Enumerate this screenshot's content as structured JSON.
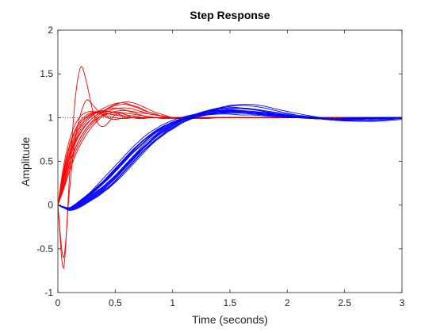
{
  "chart_data": {
    "type": "line",
    "title": "Step Response",
    "xlabel": "Time (seconds)",
    "ylabel": "Amplitude",
    "xlim": [
      0,
      3
    ],
    "ylim": [
      -1,
      2
    ],
    "xticks": [
      0,
      0.5,
      1,
      1.5,
      2,
      2.5,
      3
    ],
    "xtick_labels": [
      "0",
      "0.5",
      "1",
      "1.5",
      "2",
      "2.5",
      "3"
    ],
    "yticks": [
      -1,
      -0.5,
      0,
      0.5,
      1,
      1.5,
      2
    ],
    "ytick_labels": [
      "-1",
      "-0.5",
      "0",
      "0.5",
      "1",
      "1.5",
      "2"
    ],
    "grid": false,
    "reference_line": {
      "y": 1,
      "style": "dotted",
      "color": "#000000"
    },
    "colors": {
      "fast": "#ff0000",
      "slow": "#0000ff"
    },
    "x": [
      0,
      0.05,
      0.1,
      0.15,
      0.2,
      0.25,
      0.3,
      0.35,
      0.4,
      0.45,
      0.5,
      0.55,
      0.6,
      0.65,
      0.7,
      0.75,
      0.8,
      0.85,
      0.9,
      0.95,
      1,
      1.1,
      1.2,
      1.3,
      1.4,
      1.5,
      1.6,
      1.7,
      1.8,
      1.9,
      2,
      2.2,
      2.4,
      2.6,
      2.8,
      3
    ],
    "series": [
      {
        "group": "fast",
        "values": [
          0,
          -0.72,
          0.3,
          1.2,
          1.58,
          1.4,
          1.1,
          0.93,
          0.9,
          0.96,
          1.03,
          1.05,
          1.03,
          1.0,
          0.99,
          0.99,
          1.0,
          1.0,
          1.0,
          1.0,
          1.0,
          1.0,
          1.0,
          1.0,
          1.0,
          1.0,
          1.0,
          1.0,
          1.0,
          1.0,
          1.0,
          1.0,
          1.0,
          1.0,
          1.0,
          1.0
        ]
      },
      {
        "group": "fast",
        "values": [
          0,
          -0.6,
          0.15,
          0.75,
          1.05,
          1.2,
          1.15,
          1.08,
          1.02,
          0.99,
          0.98,
          0.99,
          1.0,
          1.0,
          1.0,
          1.0,
          1.0,
          1.0,
          1.0,
          1.0,
          1.0,
          1.0,
          1.0,
          1.0,
          1.0,
          1.0,
          1.0,
          1.0,
          1.0,
          1.0,
          1.0,
          1.0,
          1.0,
          1.0,
          1.0,
          1.0
        ]
      },
      {
        "group": "fast",
        "values": [
          0,
          0.3,
          0.55,
          0.72,
          0.84,
          0.93,
          0.99,
          1.04,
          1.08,
          1.1,
          1.11,
          1.1,
          1.08,
          1.06,
          1.04,
          1.02,
          1.01,
          1.0,
          0.99,
          0.99,
          0.99,
          0.99,
          1.0,
          1.0,
          1.0,
          1.0,
          1.0,
          1.0,
          1.0,
          1.0,
          1.0,
          1.0,
          1.0,
          1.0,
          1.0,
          1.0
        ]
      },
      {
        "group": "fast",
        "values": [
          0,
          0.25,
          0.48,
          0.65,
          0.78,
          0.88,
          0.96,
          1.02,
          1.07,
          1.11,
          1.14,
          1.15,
          1.15,
          1.13,
          1.11,
          1.08,
          1.06,
          1.04,
          1.02,
          1.01,
          1.0,
          0.99,
          0.99,
          0.99,
          1.0,
          1.0,
          1.0,
          1.0,
          1.0,
          1.0,
          1.0,
          1.0,
          1.0,
          1.0,
          1.0,
          1.0
        ]
      },
      {
        "group": "fast",
        "values": [
          0,
          0.35,
          0.62,
          0.8,
          0.92,
          1.0,
          1.04,
          1.06,
          1.05,
          1.04,
          1.03,
          1.02,
          1.01,
          1.0,
          1.0,
          1.0,
          1.0,
          1.0,
          1.0,
          1.0,
          1.0,
          1.0,
          1.0,
          1.0,
          1.0,
          1.0,
          1.0,
          1.0,
          1.0,
          1.0,
          1.0,
          1.0,
          1.0,
          1.0,
          1.0,
          1.0
        ]
      },
      {
        "group": "fast",
        "values": [
          0,
          0.2,
          0.42,
          0.6,
          0.74,
          0.85,
          0.93,
          0.99,
          1.04,
          1.08,
          1.1,
          1.11,
          1.11,
          1.1,
          1.08,
          1.06,
          1.04,
          1.03,
          1.02,
          1.01,
          1.0,
          1.0,
          1.0,
          1.0,
          1.0,
          1.0,
          1.0,
          1.0,
          1.0,
          1.0,
          1.0,
          1.0,
          1.0,
          1.0,
          1.0,
          1.0
        ]
      },
      {
        "group": "fast",
        "values": [
          0,
          0.4,
          0.68,
          0.86,
          0.97,
          1.03,
          1.06,
          1.07,
          1.06,
          1.04,
          1.03,
          1.02,
          1.01,
          1.0,
          1.0,
          1.0,
          1.0,
          1.0,
          1.0,
          1.0,
          1.0,
          1.0,
          1.0,
          1.0,
          1.0,
          1.0,
          1.0,
          1.0,
          1.0,
          1.0,
          1.0,
          1.0,
          1.0,
          1.0,
          1.0,
          1.0
        ]
      },
      {
        "group": "fast",
        "values": [
          0,
          0.28,
          0.52,
          0.7,
          0.83,
          0.92,
          0.99,
          1.04,
          1.08,
          1.12,
          1.15,
          1.17,
          1.18,
          1.17,
          1.15,
          1.12,
          1.09,
          1.06,
          1.04,
          1.02,
          1.0,
          0.99,
          0.99,
          0.99,
          1.0,
          1.0,
          1.0,
          1.0,
          1.0,
          1.0,
          1.0,
          1.0,
          1.0,
          1.0,
          1.0,
          1.0
        ]
      },
      {
        "group": "fast",
        "values": [
          0,
          0.32,
          0.58,
          0.77,
          0.9,
          0.98,
          1.03,
          1.06,
          1.07,
          1.07,
          1.06,
          1.05,
          1.03,
          1.02,
          1.01,
          1.0,
          1.0,
          1.0,
          1.0,
          1.0,
          1.0,
          1.0,
          1.0,
          1.0,
          1.0,
          1.0,
          1.0,
          1.0,
          1.0,
          1.0,
          1.0,
          1.0,
          1.0,
          1.0,
          1.0,
          1.0
        ]
      },
      {
        "group": "fast",
        "values": [
          0,
          0.18,
          0.38,
          0.56,
          0.7,
          0.81,
          0.9,
          0.97,
          1.02,
          1.05,
          1.07,
          1.08,
          1.08,
          1.07,
          1.06,
          1.05,
          1.04,
          1.03,
          1.02,
          1.01,
          1.0,
          1.0,
          1.0,
          1.0,
          1.0,
          1.0,
          1.0,
          1.0,
          1.0,
          1.0,
          1.0,
          1.0,
          1.0,
          1.0,
          1.0,
          1.0
        ]
      },
      {
        "group": "fast",
        "values": [
          0,
          0.45,
          0.74,
          0.92,
          1.02,
          1.06,
          1.07,
          1.05,
          1.03,
          1.01,
          1.0,
          0.99,
          0.99,
          1.0,
          1.0,
          1.0,
          1.0,
          1.0,
          1.0,
          1.0,
          1.0,
          1.0,
          1.0,
          1.0,
          1.0,
          1.0,
          1.0,
          1.0,
          1.0,
          1.0,
          1.0,
          1.0,
          1.0,
          1.0,
          1.0,
          1.0
        ]
      },
      {
        "group": "fast",
        "values": [
          0,
          0.3,
          0.56,
          0.74,
          0.87,
          0.96,
          1.02,
          1.07,
          1.11,
          1.14,
          1.16,
          1.17,
          1.16,
          1.14,
          1.12,
          1.09,
          1.06,
          1.04,
          1.02,
          1.01,
          1.0,
          0.99,
          0.99,
          1.0,
          1.0,
          1.0,
          1.0,
          1.0,
          1.0,
          1.0,
          1.0,
          1.0,
          1.0,
          1.0,
          1.0,
          1.0
        ]
      },
      {
        "group": "fast",
        "values": [
          0,
          0.22,
          0.46,
          0.64,
          0.78,
          0.88,
          0.95,
          1.0,
          1.03,
          1.05,
          1.06,
          1.06,
          1.05,
          1.04,
          1.03,
          1.02,
          1.01,
          1.0,
          1.0,
          1.0,
          1.0,
          1.0,
          1.0,
          1.0,
          1.0,
          1.0,
          1.0,
          1.0,
          1.0,
          1.0,
          1.0,
          1.0,
          1.0,
          1.0,
          1.0,
          1.0
        ]
      },
      {
        "group": "fast",
        "values": [
          0,
          0.38,
          0.66,
          0.84,
          0.95,
          1.01,
          1.05,
          1.07,
          1.08,
          1.07,
          1.05,
          1.03,
          1.01,
          1.0,
          0.99,
          0.99,
          1.0,
          1.0,
          1.0,
          1.0,
          1.0,
          1.0,
          1.0,
          1.0,
          1.0,
          1.0,
          1.0,
          1.0,
          1.0,
          1.0,
          1.0,
          1.0,
          1.0,
          1.0,
          1.0,
          1.0
        ]
      },
      {
        "group": "slow",
        "values": [
          0,
          -0.03,
          -0.04,
          -0.02,
          0.02,
          0.07,
          0.12,
          0.17,
          0.22,
          0.28,
          0.34,
          0.41,
          0.48,
          0.55,
          0.62,
          0.69,
          0.75,
          0.8,
          0.85,
          0.89,
          0.93,
          0.98,
          1.02,
          1.05,
          1.06,
          1.07,
          1.07,
          1.06,
          1.05,
          1.03,
          1.02,
          1.0,
          0.99,
          0.99,
          0.99,
          1.0
        ]
      },
      {
        "group": "slow",
        "values": [
          0,
          -0.03,
          -0.05,
          -0.03,
          0.0,
          0.04,
          0.08,
          0.13,
          0.18,
          0.24,
          0.3,
          0.37,
          0.44,
          0.51,
          0.58,
          0.65,
          0.71,
          0.77,
          0.82,
          0.87,
          0.91,
          0.98,
          1.04,
          1.08,
          1.11,
          1.12,
          1.11,
          1.09,
          1.07,
          1.04,
          1.02,
          0.99,
          0.98,
          0.98,
          0.99,
          1.0
        ]
      },
      {
        "group": "slow",
        "values": [
          0,
          -0.02,
          -0.03,
          0.0,
          0.05,
          0.1,
          0.16,
          0.22,
          0.28,
          0.35,
          0.42,
          0.49,
          0.56,
          0.63,
          0.69,
          0.75,
          0.8,
          0.85,
          0.89,
          0.92,
          0.95,
          0.99,
          1.02,
          1.03,
          1.04,
          1.04,
          1.03,
          1.03,
          1.02,
          1.01,
          1.0,
          1.0,
          0.99,
          1.0,
          1.0,
          1.0
        ]
      },
      {
        "group": "slow",
        "values": [
          0,
          -0.03,
          -0.06,
          -0.05,
          -0.02,
          0.02,
          0.06,
          0.1,
          0.15,
          0.2,
          0.26,
          0.32,
          0.39,
          0.46,
          0.53,
          0.6,
          0.67,
          0.73,
          0.78,
          0.83,
          0.87,
          0.95,
          1.01,
          1.06,
          1.1,
          1.13,
          1.14,
          1.13,
          1.11,
          1.08,
          1.05,
          1.0,
          0.97,
          0.96,
          0.97,
          0.99
        ]
      },
      {
        "group": "slow",
        "values": [
          0,
          -0.02,
          -0.04,
          -0.01,
          0.03,
          0.08,
          0.13,
          0.19,
          0.25,
          0.31,
          0.38,
          0.45,
          0.52,
          0.59,
          0.65,
          0.71,
          0.77,
          0.82,
          0.86,
          0.9,
          0.93,
          0.99,
          1.03,
          1.06,
          1.08,
          1.08,
          1.07,
          1.06,
          1.04,
          1.03,
          1.01,
          0.99,
          0.98,
          0.99,
          0.99,
          1.0
        ]
      },
      {
        "group": "slow",
        "values": [
          0,
          -0.03,
          -0.05,
          -0.04,
          -0.01,
          0.03,
          0.07,
          0.11,
          0.16,
          0.21,
          0.27,
          0.34,
          0.41,
          0.48,
          0.55,
          0.62,
          0.68,
          0.74,
          0.79,
          0.84,
          0.88,
          0.95,
          1.0,
          1.03,
          1.05,
          1.06,
          1.06,
          1.05,
          1.04,
          1.03,
          1.02,
          1.0,
          0.99,
          0.99,
          1.0,
          1.0
        ]
      },
      {
        "group": "slow",
        "values": [
          0,
          -0.02,
          -0.03,
          0.01,
          0.06,
          0.11,
          0.17,
          0.24,
          0.31,
          0.38,
          0.45,
          0.52,
          0.59,
          0.66,
          0.72,
          0.78,
          0.83,
          0.87,
          0.91,
          0.94,
          0.97,
          1.01,
          1.04,
          1.06,
          1.07,
          1.07,
          1.06,
          1.05,
          1.03,
          1.02,
          1.01,
          0.99,
          0.99,
          0.99,
          1.0,
          1.0
        ]
      },
      {
        "group": "slow",
        "values": [
          0,
          -0.03,
          -0.05,
          -0.04,
          0.0,
          0.05,
          0.09,
          0.14,
          0.19,
          0.25,
          0.31,
          0.38,
          0.45,
          0.52,
          0.59,
          0.66,
          0.72,
          0.78,
          0.83,
          0.87,
          0.91,
          0.97,
          1.02,
          1.06,
          1.09,
          1.1,
          1.1,
          1.09,
          1.07,
          1.05,
          1.03,
          1.0,
          0.98,
          0.98,
          0.99,
          1.0
        ]
      },
      {
        "group": "slow",
        "values": [
          0,
          -0.02,
          -0.04,
          -0.02,
          0.02,
          0.06,
          0.11,
          0.16,
          0.21,
          0.27,
          0.33,
          0.4,
          0.47,
          0.54,
          0.61,
          0.67,
          0.73,
          0.79,
          0.84,
          0.88,
          0.92,
          0.98,
          1.03,
          1.07,
          1.1,
          1.11,
          1.11,
          1.1,
          1.08,
          1.06,
          1.04,
          1.01,
          0.98,
          0.97,
          0.98,
          0.99
        ]
      },
      {
        "group": "slow",
        "values": [
          0,
          -0.03,
          -0.04,
          -0.01,
          0.04,
          0.09,
          0.15,
          0.21,
          0.27,
          0.33,
          0.4,
          0.47,
          0.54,
          0.61,
          0.68,
          0.74,
          0.79,
          0.84,
          0.88,
          0.91,
          0.94,
          0.99,
          1.02,
          1.04,
          1.05,
          1.05,
          1.05,
          1.04,
          1.03,
          1.02,
          1.01,
          1.0,
          0.99,
          0.99,
          1.0,
          1.0
        ]
      },
      {
        "group": "slow",
        "values": [
          0,
          -0.03,
          -0.06,
          -0.04,
          -0.01,
          0.03,
          0.07,
          0.12,
          0.17,
          0.22,
          0.28,
          0.35,
          0.42,
          0.49,
          0.56,
          0.63,
          0.69,
          0.75,
          0.8,
          0.85,
          0.89,
          0.96,
          1.02,
          1.07,
          1.11,
          1.14,
          1.15,
          1.15,
          1.13,
          1.1,
          1.07,
          1.02,
          0.98,
          0.96,
          0.96,
          0.98
        ]
      },
      {
        "group": "slow",
        "values": [
          0,
          -0.02,
          -0.03,
          0.0,
          0.05,
          0.1,
          0.15,
          0.21,
          0.27,
          0.34,
          0.41,
          0.48,
          0.55,
          0.62,
          0.68,
          0.74,
          0.8,
          0.84,
          0.88,
          0.92,
          0.95,
          1.0,
          1.04,
          1.07,
          1.08,
          1.09,
          1.08,
          1.07,
          1.05,
          1.04,
          1.02,
          1.0,
          0.99,
          0.99,
          0.99,
          1.0
        ]
      },
      {
        "group": "slow",
        "values": [
          0,
          -0.03,
          -0.05,
          -0.03,
          0.01,
          0.05,
          0.1,
          0.15,
          0.2,
          0.26,
          0.32,
          0.39,
          0.46,
          0.53,
          0.6,
          0.66,
          0.72,
          0.78,
          0.82,
          0.86,
          0.9,
          0.96,
          1.01,
          1.04,
          1.07,
          1.08,
          1.08,
          1.07,
          1.06,
          1.04,
          1.03,
          1.0,
          0.99,
          0.98,
          0.99,
          1.0
        ]
      },
      {
        "group": "slow",
        "values": [
          0,
          -0.02,
          -0.04,
          -0.02,
          0.03,
          0.08,
          0.14,
          0.2,
          0.26,
          0.32,
          0.39,
          0.46,
          0.53,
          0.6,
          0.66,
          0.72,
          0.78,
          0.83,
          0.87,
          0.9,
          0.93,
          0.98,
          1.02,
          1.04,
          1.06,
          1.06,
          1.06,
          1.05,
          1.04,
          1.02,
          1.01,
          1.0,
          0.99,
          0.99,
          1.0,
          1.0
        ]
      }
    ]
  }
}
